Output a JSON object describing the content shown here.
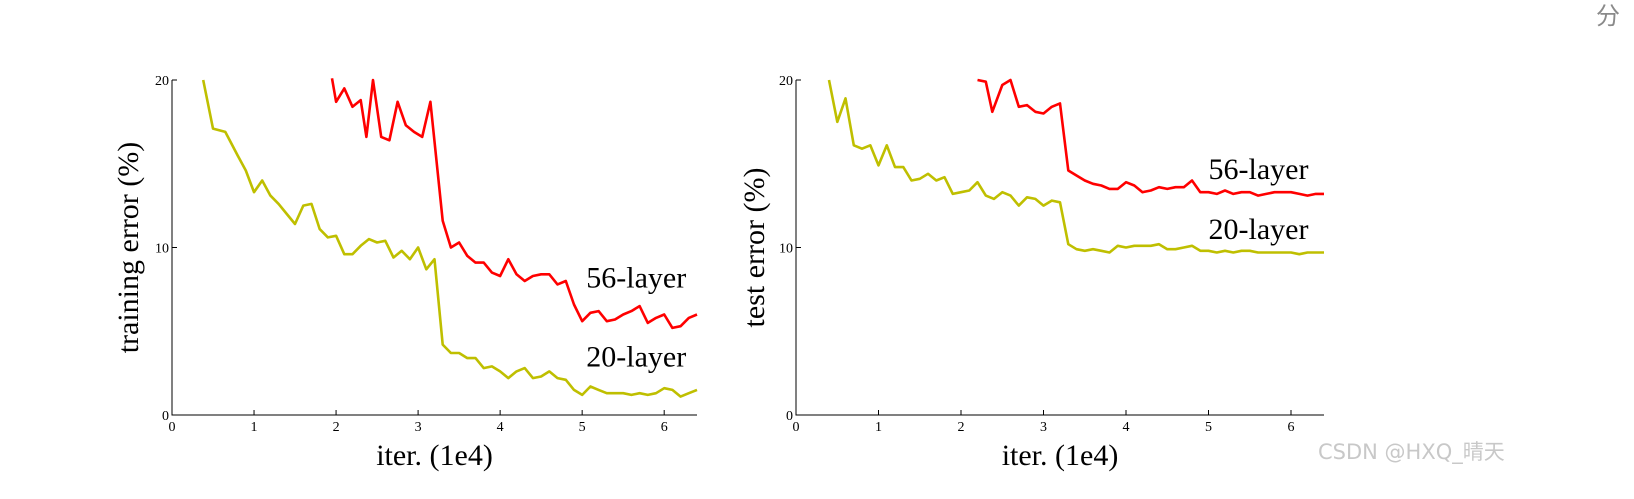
{
  "page": {
    "corner_text": "分",
    "watermark": "CSDN @HXQ_晴天"
  },
  "chart_data": [
    {
      "type": "line",
      "title": "",
      "xlabel": "iter. (1e4)",
      "ylabel": "training error (%)",
      "xlim": [
        0,
        6.4
      ],
      "ylim": [
        0,
        20
      ],
      "xticks": [
        "0",
        "1",
        "2",
        "3",
        "4",
        "5",
        "6"
      ],
      "yticks": [
        "0",
        "10",
        "20"
      ],
      "grid": false,
      "series": [
        {
          "name": "56-layer",
          "color": "#ff0000",
          "x": [
            1.95,
            2.0,
            2.1,
            2.2,
            2.3,
            2.37,
            2.45,
            2.55,
            2.65,
            2.75,
            2.85,
            2.95,
            3.05,
            3.15,
            3.3,
            3.4,
            3.5,
            3.6,
            3.7,
            3.8,
            3.9,
            4.0,
            4.1,
            4.2,
            4.3,
            4.4,
            4.5,
            4.6,
            4.7,
            4.8,
            4.9,
            5.0,
            5.1,
            5.2,
            5.3,
            5.4,
            5.5,
            5.6,
            5.7,
            5.8,
            5.9,
            6.0,
            6.1,
            6.2,
            6.3,
            6.4
          ],
          "y": [
            20.1,
            18.7,
            19.5,
            18.4,
            18.8,
            16.6,
            20.0,
            16.6,
            16.4,
            18.7,
            17.3,
            16.9,
            16.6,
            18.7,
            11.6,
            10.0,
            10.3,
            9.5,
            9.1,
            9.1,
            8.5,
            8.3,
            9.3,
            8.4,
            8.0,
            8.3,
            8.4,
            8.4,
            7.8,
            8.0,
            6.6,
            5.6,
            6.1,
            6.2,
            5.6,
            5.7,
            6.0,
            6.2,
            6.5,
            5.5,
            5.8,
            6.0,
            5.2,
            5.3,
            5.8,
            6.0
          ]
        },
        {
          "name": "20-layer",
          "color": "#bfbf00",
          "x": [
            0.38,
            0.5,
            0.65,
            0.8,
            0.9,
            1.0,
            1.1,
            1.2,
            1.3,
            1.4,
            1.5,
            1.6,
            1.7,
            1.8,
            1.9,
            2.0,
            2.1,
            2.2,
            2.3,
            2.4,
            2.5,
            2.6,
            2.7,
            2.8,
            2.9,
            3.0,
            3.1,
            3.2,
            3.3,
            3.4,
            3.5,
            3.6,
            3.7,
            3.8,
            3.9,
            4.0,
            4.1,
            4.2,
            4.3,
            4.4,
            4.5,
            4.6,
            4.7,
            4.8,
            4.9,
            5.0,
            5.1,
            5.2,
            5.3,
            5.4,
            5.5,
            5.6,
            5.7,
            5.8,
            5.9,
            6.0,
            6.1,
            6.2,
            6.3,
            6.4
          ],
          "y": [
            20.0,
            17.1,
            16.9,
            15.5,
            14.6,
            13.3,
            14.0,
            13.1,
            12.6,
            12.0,
            11.4,
            12.5,
            12.6,
            11.1,
            10.6,
            10.7,
            9.6,
            9.6,
            10.1,
            10.5,
            10.3,
            10.4,
            9.4,
            9.8,
            9.3,
            10.0,
            8.7,
            9.3,
            4.2,
            3.7,
            3.7,
            3.4,
            3.4,
            2.8,
            2.9,
            2.6,
            2.2,
            2.6,
            2.8,
            2.2,
            2.3,
            2.6,
            2.2,
            2.1,
            1.5,
            1.2,
            1.7,
            1.5,
            1.3,
            1.3,
            1.3,
            1.2,
            1.3,
            1.2,
            1.3,
            1.6,
            1.5,
            1.1,
            1.3,
            1.5
          ]
        }
      ],
      "annotations": [
        {
          "text": "56-layer",
          "x": 5.05,
          "y": 7.6
        },
        {
          "text": "20-layer",
          "x": 5.05,
          "y": 2.9
        }
      ]
    },
    {
      "type": "line",
      "title": "",
      "xlabel": "iter. (1e4)",
      "ylabel": "test error (%)",
      "xlim": [
        0,
        6.4
      ],
      "ylim": [
        0,
        20
      ],
      "xticks": [
        "0",
        "1",
        "2",
        "3",
        "4",
        "5",
        "6"
      ],
      "yticks": [
        "0",
        "10",
        "20"
      ],
      "grid": false,
      "series": [
        {
          "name": "56-layer",
          "color": "#ff0000",
          "x": [
            2.2,
            2.3,
            2.38,
            2.5,
            2.6,
            2.7,
            2.8,
            2.9,
            3.0,
            3.1,
            3.2,
            3.3,
            3.4,
            3.5,
            3.6,
            3.7,
            3.8,
            3.9,
            4.0,
            4.1,
            4.2,
            4.3,
            4.4,
            4.5,
            4.6,
            4.7,
            4.8,
            4.9,
            5.0,
            5.1,
            5.2,
            5.3,
            5.4,
            5.5,
            5.6,
            5.7,
            5.8,
            5.9,
            6.0,
            6.1,
            6.2,
            6.3,
            6.4
          ],
          "y": [
            20.0,
            19.9,
            18.1,
            19.7,
            20.0,
            18.4,
            18.5,
            18.1,
            18.0,
            18.4,
            18.6,
            14.6,
            14.3,
            14.0,
            13.8,
            13.7,
            13.5,
            13.5,
            13.9,
            13.7,
            13.3,
            13.4,
            13.6,
            13.5,
            13.6,
            13.6,
            14.0,
            13.3,
            13.3,
            13.2,
            13.4,
            13.2,
            13.3,
            13.3,
            13.1,
            13.2,
            13.3,
            13.3,
            13.3,
            13.2,
            13.1,
            13.2,
            13.2
          ]
        },
        {
          "name": "20-layer",
          "color": "#bfbf00",
          "x": [
            0.4,
            0.5,
            0.6,
            0.7,
            0.8,
            0.9,
            1.0,
            1.1,
            1.2,
            1.3,
            1.4,
            1.5,
            1.6,
            1.7,
            1.8,
            1.9,
            2.0,
            2.1,
            2.2,
            2.3,
            2.4,
            2.5,
            2.6,
            2.7,
            2.8,
            2.9,
            3.0,
            3.1,
            3.2,
            3.3,
            3.4,
            3.5,
            3.6,
            3.7,
            3.8,
            3.9,
            4.0,
            4.1,
            4.2,
            4.3,
            4.4,
            4.5,
            4.6,
            4.7,
            4.8,
            4.9,
            5.0,
            5.1,
            5.2,
            5.3,
            5.4,
            5.5,
            5.6,
            5.7,
            5.8,
            5.9,
            6.0,
            6.1,
            6.2,
            6.3,
            6.4
          ],
          "y": [
            20.0,
            17.5,
            18.9,
            16.1,
            15.9,
            16.1,
            14.9,
            16.1,
            14.8,
            14.8,
            14.0,
            14.1,
            14.4,
            14.0,
            14.2,
            13.2,
            13.3,
            13.4,
            13.9,
            13.1,
            12.9,
            13.3,
            13.1,
            12.5,
            13.0,
            12.9,
            12.5,
            12.8,
            12.7,
            10.2,
            9.9,
            9.8,
            9.9,
            9.8,
            9.7,
            10.1,
            10.0,
            10.1,
            10.1,
            10.1,
            10.2,
            9.9,
            9.9,
            10.0,
            10.1,
            9.8,
            9.8,
            9.7,
            9.8,
            9.7,
            9.8,
            9.8,
            9.7,
            9.7,
            9.7,
            9.7,
            9.7,
            9.6,
            9.7,
            9.7,
            9.7
          ]
        }
      ],
      "annotations": [
        {
          "text": "56-layer",
          "x": 5.0,
          "y": 14.1
        },
        {
          "text": "20-layer",
          "x": 5.0,
          "y": 10.5
        }
      ]
    }
  ]
}
